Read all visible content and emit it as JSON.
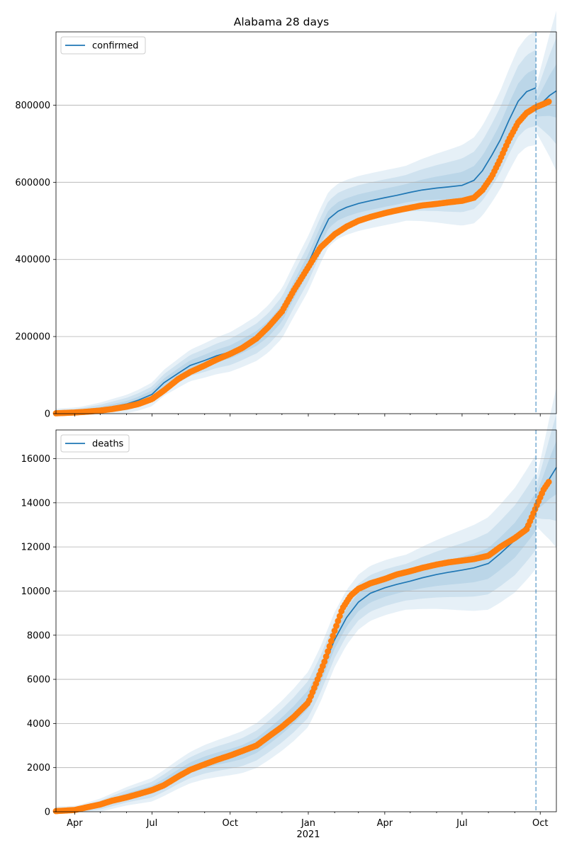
{
  "chart_data": [
    {
      "type": "line",
      "title": "Alabama 28 days",
      "xlabel": "",
      "ylabel": "",
      "grid": "y",
      "legend_position": "top-left",
      "x_range": [
        "2020-03-10",
        "2021-10-20"
      ],
      "ylim": [
        0,
        990000
      ],
      "yticks": [
        0,
        200000,
        400000,
        600000,
        800000
      ],
      "ytick_labels": [
        "0",
        "200000",
        "400000",
        "600000",
        "800000"
      ],
      "vline_date": "2021-09-26",
      "series": [
        {
          "name": "confirmed",
          "kind": "model",
          "color": "#1f77b4",
          "points": [
            [
              "2020-03-10",
              1000
            ],
            [
              "2020-04-01",
              4000
            ],
            [
              "2020-05-01",
              12000
            ],
            [
              "2020-06-01",
              25000
            ],
            [
              "2020-06-15",
              35000
            ],
            [
              "2020-07-01",
              50000
            ],
            [
              "2020-07-15",
              80000
            ],
            [
              "2020-08-01",
              105000
            ],
            [
              "2020-08-15",
              125000
            ],
            [
              "2020-09-01",
              138000
            ],
            [
              "2020-09-15",
              150000
            ],
            [
              "2020-10-01",
              160000
            ],
            [
              "2020-10-15",
              175000
            ],
            [
              "2020-11-01",
              195000
            ],
            [
              "2020-11-15",
              220000
            ],
            [
              "2020-12-01",
              260000
            ],
            [
              "2020-12-15",
              320000
            ],
            [
              "2021-01-01",
              390000
            ],
            [
              "2021-01-15",
              460000
            ],
            [
              "2021-01-25",
              505000
            ],
            [
              "2021-02-05",
              525000
            ],
            [
              "2021-02-15",
              535000
            ],
            [
              "2021-03-01",
              545000
            ],
            [
              "2021-03-15",
              552000
            ],
            [
              "2021-04-01",
              560000
            ],
            [
              "2021-04-15",
              566000
            ],
            [
              "2021-05-01",
              574000
            ],
            [
              "2021-05-15",
              580000
            ],
            [
              "2021-06-01",
              585000
            ],
            [
              "2021-06-15",
              588000
            ],
            [
              "2021-07-01",
              592000
            ],
            [
              "2021-07-15",
              605000
            ],
            [
              "2021-07-25",
              630000
            ],
            [
              "2021-08-05",
              670000
            ],
            [
              "2021-08-15",
              710000
            ],
            [
              "2021-08-25",
              760000
            ],
            [
              "2021-09-05",
              810000
            ],
            [
              "2021-09-15",
              835000
            ],
            [
              "2021-09-26",
              845000
            ]
          ]
        },
        {
          "name": "confirmed-forecast",
          "kind": "forecast",
          "color": "#1f77b4",
          "points": [
            [
              "2021-09-26",
              790000
            ],
            [
              "2021-10-05",
              810000
            ],
            [
              "2021-10-12",
              825000
            ],
            [
              "2021-10-20",
              837000
            ]
          ]
        },
        {
          "name": "confirmed-observed",
          "kind": "observed",
          "color": "#ff7f0e",
          "points": [
            [
              "2020-03-10",
              1000
            ],
            [
              "2020-04-01",
              3000
            ],
            [
              "2020-04-15",
              5000
            ],
            [
              "2020-05-01",
              8000
            ],
            [
              "2020-05-15",
              12000
            ],
            [
              "2020-06-01",
              18000
            ],
            [
              "2020-06-15",
              25000
            ],
            [
              "2020-07-01",
              38000
            ],
            [
              "2020-07-15",
              60000
            ],
            [
              "2020-08-01",
              90000
            ],
            [
              "2020-08-15",
              108000
            ],
            [
              "2020-09-01",
              125000
            ],
            [
              "2020-09-15",
              140000
            ],
            [
              "2020-10-01",
              155000
            ],
            [
              "2020-10-15",
              170000
            ],
            [
              "2020-11-01",
              195000
            ],
            [
              "2020-11-15",
              225000
            ],
            [
              "2020-12-01",
              265000
            ],
            [
              "2020-12-15",
              320000
            ],
            [
              "2021-01-01",
              380000
            ],
            [
              "2021-01-15",
              430000
            ],
            [
              "2021-02-01",
              465000
            ],
            [
              "2021-02-15",
              485000
            ],
            [
              "2021-03-01",
              500000
            ],
            [
              "2021-03-15",
              510000
            ],
            [
              "2021-04-01",
              520000
            ],
            [
              "2021-04-15",
              527000
            ],
            [
              "2021-05-01",
              534000
            ],
            [
              "2021-05-15",
              540000
            ],
            [
              "2021-06-01",
              544000
            ],
            [
              "2021-06-15",
              548000
            ],
            [
              "2021-07-01",
              552000
            ],
            [
              "2021-07-15",
              560000
            ],
            [
              "2021-07-25",
              580000
            ],
            [
              "2021-08-05",
              615000
            ],
            [
              "2021-08-15",
              660000
            ],
            [
              "2021-08-25",
              710000
            ],
            [
              "2021-09-05",
              755000
            ],
            [
              "2021-09-15",
              780000
            ],
            [
              "2021-09-26",
              795000
            ],
            [
              "2021-10-05",
              803000
            ],
            [
              "2021-10-12",
              810000
            ]
          ]
        }
      ]
    },
    {
      "type": "line",
      "title": "",
      "xlabel": "",
      "ylabel": "",
      "grid": "y",
      "legend_position": "top-left",
      "x_range": [
        "2020-03-10",
        "2021-10-20"
      ],
      "ylim": [
        0,
        17300
      ],
      "yticks": [
        0,
        2000,
        4000,
        6000,
        8000,
        10000,
        12000,
        14000,
        16000
      ],
      "ytick_labels": [
        "0",
        "2000",
        "4000",
        "6000",
        "8000",
        "10000",
        "12000",
        "14000",
        "16000"
      ],
      "xticks": [
        {
          "date": "2020-04-01",
          "label": "Apr"
        },
        {
          "date": "2020-07-01",
          "label": "Jul"
        },
        {
          "date": "2020-10-01",
          "label": "Oct"
        },
        {
          "date": "2021-01-01",
          "label": "Jan",
          "sublabel": "2021"
        },
        {
          "date": "2021-04-01",
          "label": "Apr"
        },
        {
          "date": "2021-07-01",
          "label": "Jul"
        },
        {
          "date": "2021-10-01",
          "label": "Oct"
        }
      ],
      "vline_date": "2021-09-26",
      "series": [
        {
          "name": "deaths",
          "kind": "model",
          "color": "#1f77b4",
          "points": [
            [
              "2020-03-10",
              30
            ],
            [
              "2020-04-01",
              60
            ],
            [
              "2020-05-01",
              300
            ],
            [
              "2020-06-01",
              700
            ],
            [
              "2020-07-01",
              1000
            ],
            [
              "2020-07-15",
              1300
            ],
            [
              "2020-08-01",
              1700
            ],
            [
              "2020-08-15",
              2000
            ],
            [
              "2020-09-01",
              2250
            ],
            [
              "2020-09-15",
              2400
            ],
            [
              "2020-10-01",
              2550
            ],
            [
              "2020-10-15",
              2700
            ],
            [
              "2020-11-01",
              3000
            ],
            [
              "2020-11-15",
              3400
            ],
            [
              "2020-12-01",
              3900
            ],
            [
              "2020-12-15",
              4400
            ],
            [
              "2021-01-01",
              5100
            ],
            [
              "2021-01-15",
              6200
            ],
            [
              "2021-02-01",
              7800
            ],
            [
              "2021-02-15",
              8800
            ],
            [
              "2021-03-01",
              9500
            ],
            [
              "2021-03-15",
              9900
            ],
            [
              "2021-04-01",
              10150
            ],
            [
              "2021-04-15",
              10300
            ],
            [
              "2021-05-01",
              10450
            ],
            [
              "2021-05-15",
              10600
            ],
            [
              "2021-06-01",
              10750
            ],
            [
              "2021-06-15",
              10850
            ],
            [
              "2021-07-01",
              10950
            ],
            [
              "2021-07-15",
              11050
            ],
            [
              "2021-08-01",
              11250
            ],
            [
              "2021-08-15",
              11700
            ],
            [
              "2021-09-01",
              12300
            ],
            [
              "2021-09-15",
              13000
            ],
            [
              "2021-09-26",
              13600
            ]
          ]
        },
        {
          "name": "deaths-forecast",
          "kind": "forecast",
          "color": "#1f77b4",
          "points": [
            [
              "2021-09-26",
              14000
            ],
            [
              "2021-10-05",
              14600
            ],
            [
              "2021-10-12",
              15100
            ],
            [
              "2021-10-20",
              15600
            ]
          ]
        },
        {
          "name": "deaths-observed",
          "kind": "observed",
          "color": "#ff7f0e",
          "points": [
            [
              "2020-03-10",
              30
            ],
            [
              "2020-04-01",
              80
            ],
            [
              "2020-04-15",
              200
            ],
            [
              "2020-05-01",
              330
            ],
            [
              "2020-05-15",
              500
            ],
            [
              "2020-06-01",
              650
            ],
            [
              "2020-06-15",
              800
            ],
            [
              "2020-07-01",
              980
            ],
            [
              "2020-07-15",
              1200
            ],
            [
              "2020-08-01",
              1600
            ],
            [
              "2020-08-15",
              1900
            ],
            [
              "2020-09-01",
              2150
            ],
            [
              "2020-09-15",
              2350
            ],
            [
              "2020-10-01",
              2550
            ],
            [
              "2020-10-15",
              2750
            ],
            [
              "2020-11-01",
              3000
            ],
            [
              "2020-11-15",
              3400
            ],
            [
              "2020-12-01",
              3850
            ],
            [
              "2020-12-15",
              4300
            ],
            [
              "2021-01-01",
              4950
            ],
            [
              "2021-01-10",
              5800
            ],
            [
              "2021-01-20",
              6800
            ],
            [
              "2021-02-01",
              8200
            ],
            [
              "2021-02-10",
              9200
            ],
            [
              "2021-02-20",
              9800
            ],
            [
              "2021-03-01",
              10100
            ],
            [
              "2021-03-15",
              10350
            ],
            [
              "2021-04-01",
              10550
            ],
            [
              "2021-04-15",
              10750
            ],
            [
              "2021-05-01",
              10900
            ],
            [
              "2021-05-15",
              11050
            ],
            [
              "2021-06-01",
              11200
            ],
            [
              "2021-06-15",
              11300
            ],
            [
              "2021-07-01",
              11380
            ],
            [
              "2021-07-15",
              11450
            ],
            [
              "2021-08-01",
              11600
            ],
            [
              "2021-08-15",
              12000
            ],
            [
              "2021-09-01",
              12400
            ],
            [
              "2021-09-15",
              12800
            ],
            [
              "2021-09-26",
              13800
            ],
            [
              "2021-10-05",
              14600
            ],
            [
              "2021-10-12",
              15000
            ]
          ]
        }
      ]
    }
  ]
}
